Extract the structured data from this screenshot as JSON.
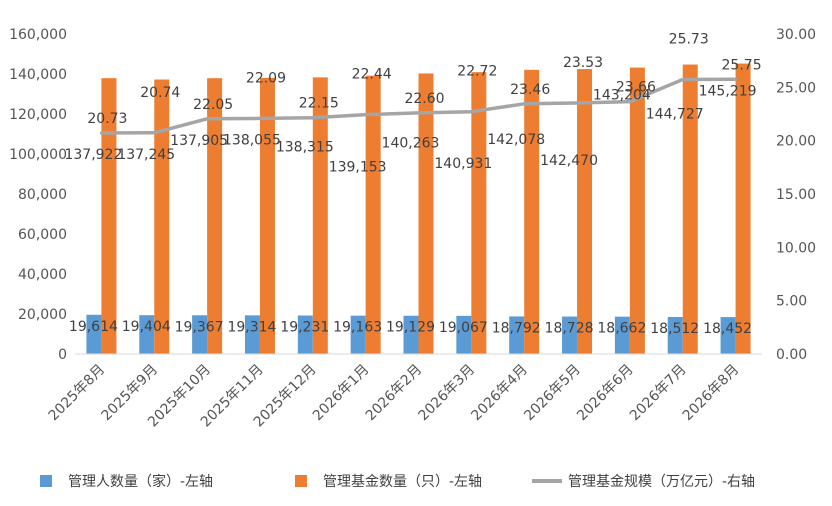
{
  "chart_data": {
    "type": "bar",
    "categories": [
      "2025年8月",
      "2025年9月",
      "2025年10月",
      "2025年11月",
      "2025年12月",
      "2026年1月",
      "2026年2月",
      "2026年3月",
      "2026年4月",
      "2026年5月",
      "2026年6月",
      "2026年7月",
      "2026年8月"
    ],
    "series": [
      {
        "name": "管理人数量（家）-左轴",
        "type": "bar",
        "axis": "left",
        "color": "#5b9bd5",
        "values": [
          19614,
          19404,
          19367,
          19314,
          19231,
          19163,
          19129,
          19067,
          18792,
          18728,
          18662,
          18512,
          18452
        ],
        "labels": [
          "19,614",
          "19,404",
          "19,367",
          "19,314",
          "19,231",
          "19,163",
          "19,129",
          "19,067",
          "18,792",
          "18,728",
          "18,662",
          "18,512",
          "18,452"
        ]
      },
      {
        "name": "管理基金数量（只）-左轴",
        "type": "bar",
        "axis": "left",
        "color": "#ed7d31",
        "values": [
          137922,
          137245,
          137905,
          138055,
          138315,
          139153,
          140263,
          140931,
          142078,
          142470,
          143204,
          144727,
          145219
        ],
        "labels": [
          "137,922",
          "137,245",
          "137,905",
          "138,055",
          "138,315",
          "139,153",
          "140,263",
          "140,931",
          "142,078",
          "142,470",
          "143,204",
          "144,727",
          "145,219"
        ]
      },
      {
        "name": "管理基金规模（万亿元）-右轴",
        "type": "line",
        "axis": "right",
        "color": "#a5a5a5",
        "values": [
          20.73,
          20.74,
          22.05,
          22.09,
          22.15,
          22.44,
          22.6,
          22.72,
          23.46,
          23.53,
          23.66,
          25.73,
          25.75
        ],
        "labels": [
          "20.73",
          "20.74",
          "22.05",
          "22.09",
          "22.15",
          "22.44",
          "22.60",
          "22.72",
          "23.46",
          "23.53",
          "23.66",
          "25.73",
          "25.75"
        ]
      }
    ],
    "y_left": {
      "range": [
        0,
        160000
      ],
      "ticks": [
        "0",
        "20,000",
        "40,000",
        "60,000",
        "80,000",
        "100,000",
        "120,000",
        "140,000",
        "160,000"
      ]
    },
    "y_right": {
      "range": [
        0,
        30
      ],
      "ticks": [
        "0.00",
        "5.00",
        "10.00",
        "15.00",
        "20.00",
        "25.00",
        "30.00"
      ]
    },
    "grid": false,
    "legend_position": "bottom"
  }
}
